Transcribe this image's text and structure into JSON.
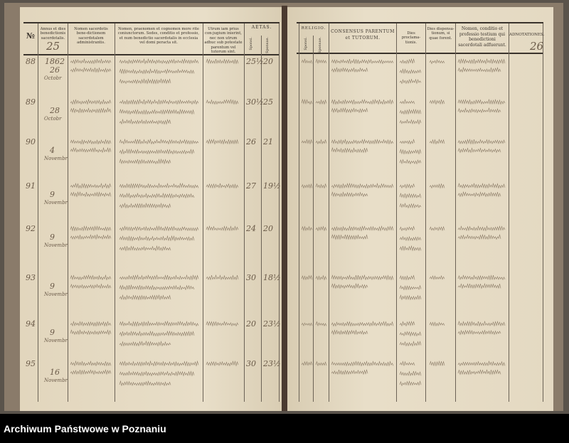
{
  "left_page": {
    "headers": {
      "no": "№",
      "annus": "Annus et dies benedictionis sacerdotalis.",
      "sacerdos": "Nomen sacerdotis bene-dictionem sacerdotalem administrantis.",
      "nomina": "Nomen, praenomen et cognomen more rite coniunctorum. Sedes, conditio et professio, et num benedictio sacerdotalis in ecclesia vel domi peracta sit.",
      "utrum": "Utrum iam prius con-jugium inierint, nec non utrum adhuc sub potestate parentum vel tutorum sint.",
      "aetas": "AETAS.",
      "sponsi": "Sponsi.",
      "sponsae": "Sponsae."
    },
    "page_number": "25",
    "entries": [
      {
        "no": "88",
        "year": "1862",
        "day": "26",
        "month": "Octobr",
        "age_sponsi": "25½",
        "age_sponsae": "20"
      },
      {
        "no": "89",
        "year": "",
        "day": "28",
        "month": "Octobr",
        "age_sponsi": "30½",
        "age_sponsae": "25"
      },
      {
        "no": "90",
        "year": "",
        "day": "4",
        "month": "Novembr",
        "age_sponsi": "26",
        "age_sponsae": "21"
      },
      {
        "no": "91",
        "year": "",
        "day": "9",
        "month": "Novembr",
        "age_sponsi": "27",
        "age_sponsae": "19½"
      },
      {
        "no": "92",
        "year": "",
        "day": "9",
        "month": "Novembr",
        "age_sponsi": "24",
        "age_sponsae": "20"
      },
      {
        "no": "93",
        "year": "",
        "day": "9",
        "month": "Novembr",
        "age_sponsi": "30",
        "age_sponsae": "18½"
      },
      {
        "no": "94",
        "year": "",
        "day": "9",
        "month": "Novembr",
        "age_sponsi": "20",
        "age_sponsae": "23½"
      },
      {
        "no": "95",
        "year": "",
        "day": "16",
        "month": "Novembr",
        "age_sponsi": "30",
        "age_sponsae": "23½"
      }
    ]
  },
  "right_page": {
    "headers": {
      "religio": "RELIGIO.",
      "sponsi": "Sponsi.",
      "sponsae": "Sponsae.",
      "consensus": "CONSENSUS PARENTUM et TUTORUM.",
      "proclamationis": "Dies proclama-tionis.",
      "dispensationis": "Dies dispensa-tionum, si quae forent.",
      "testes": "Nomen, conditio et professio testium qui benedictioni sacerdotali adfuerunt.",
      "adnotationes": "ADNOTATIONES."
    },
    "page_number": "26"
  },
  "footer": {
    "label": "Archiwum Państwowe w Poznaniu"
  },
  "colors": {
    "paper": "#e4d9c2",
    "ink": "#6a5a48",
    "footer_bg": "#000000"
  }
}
